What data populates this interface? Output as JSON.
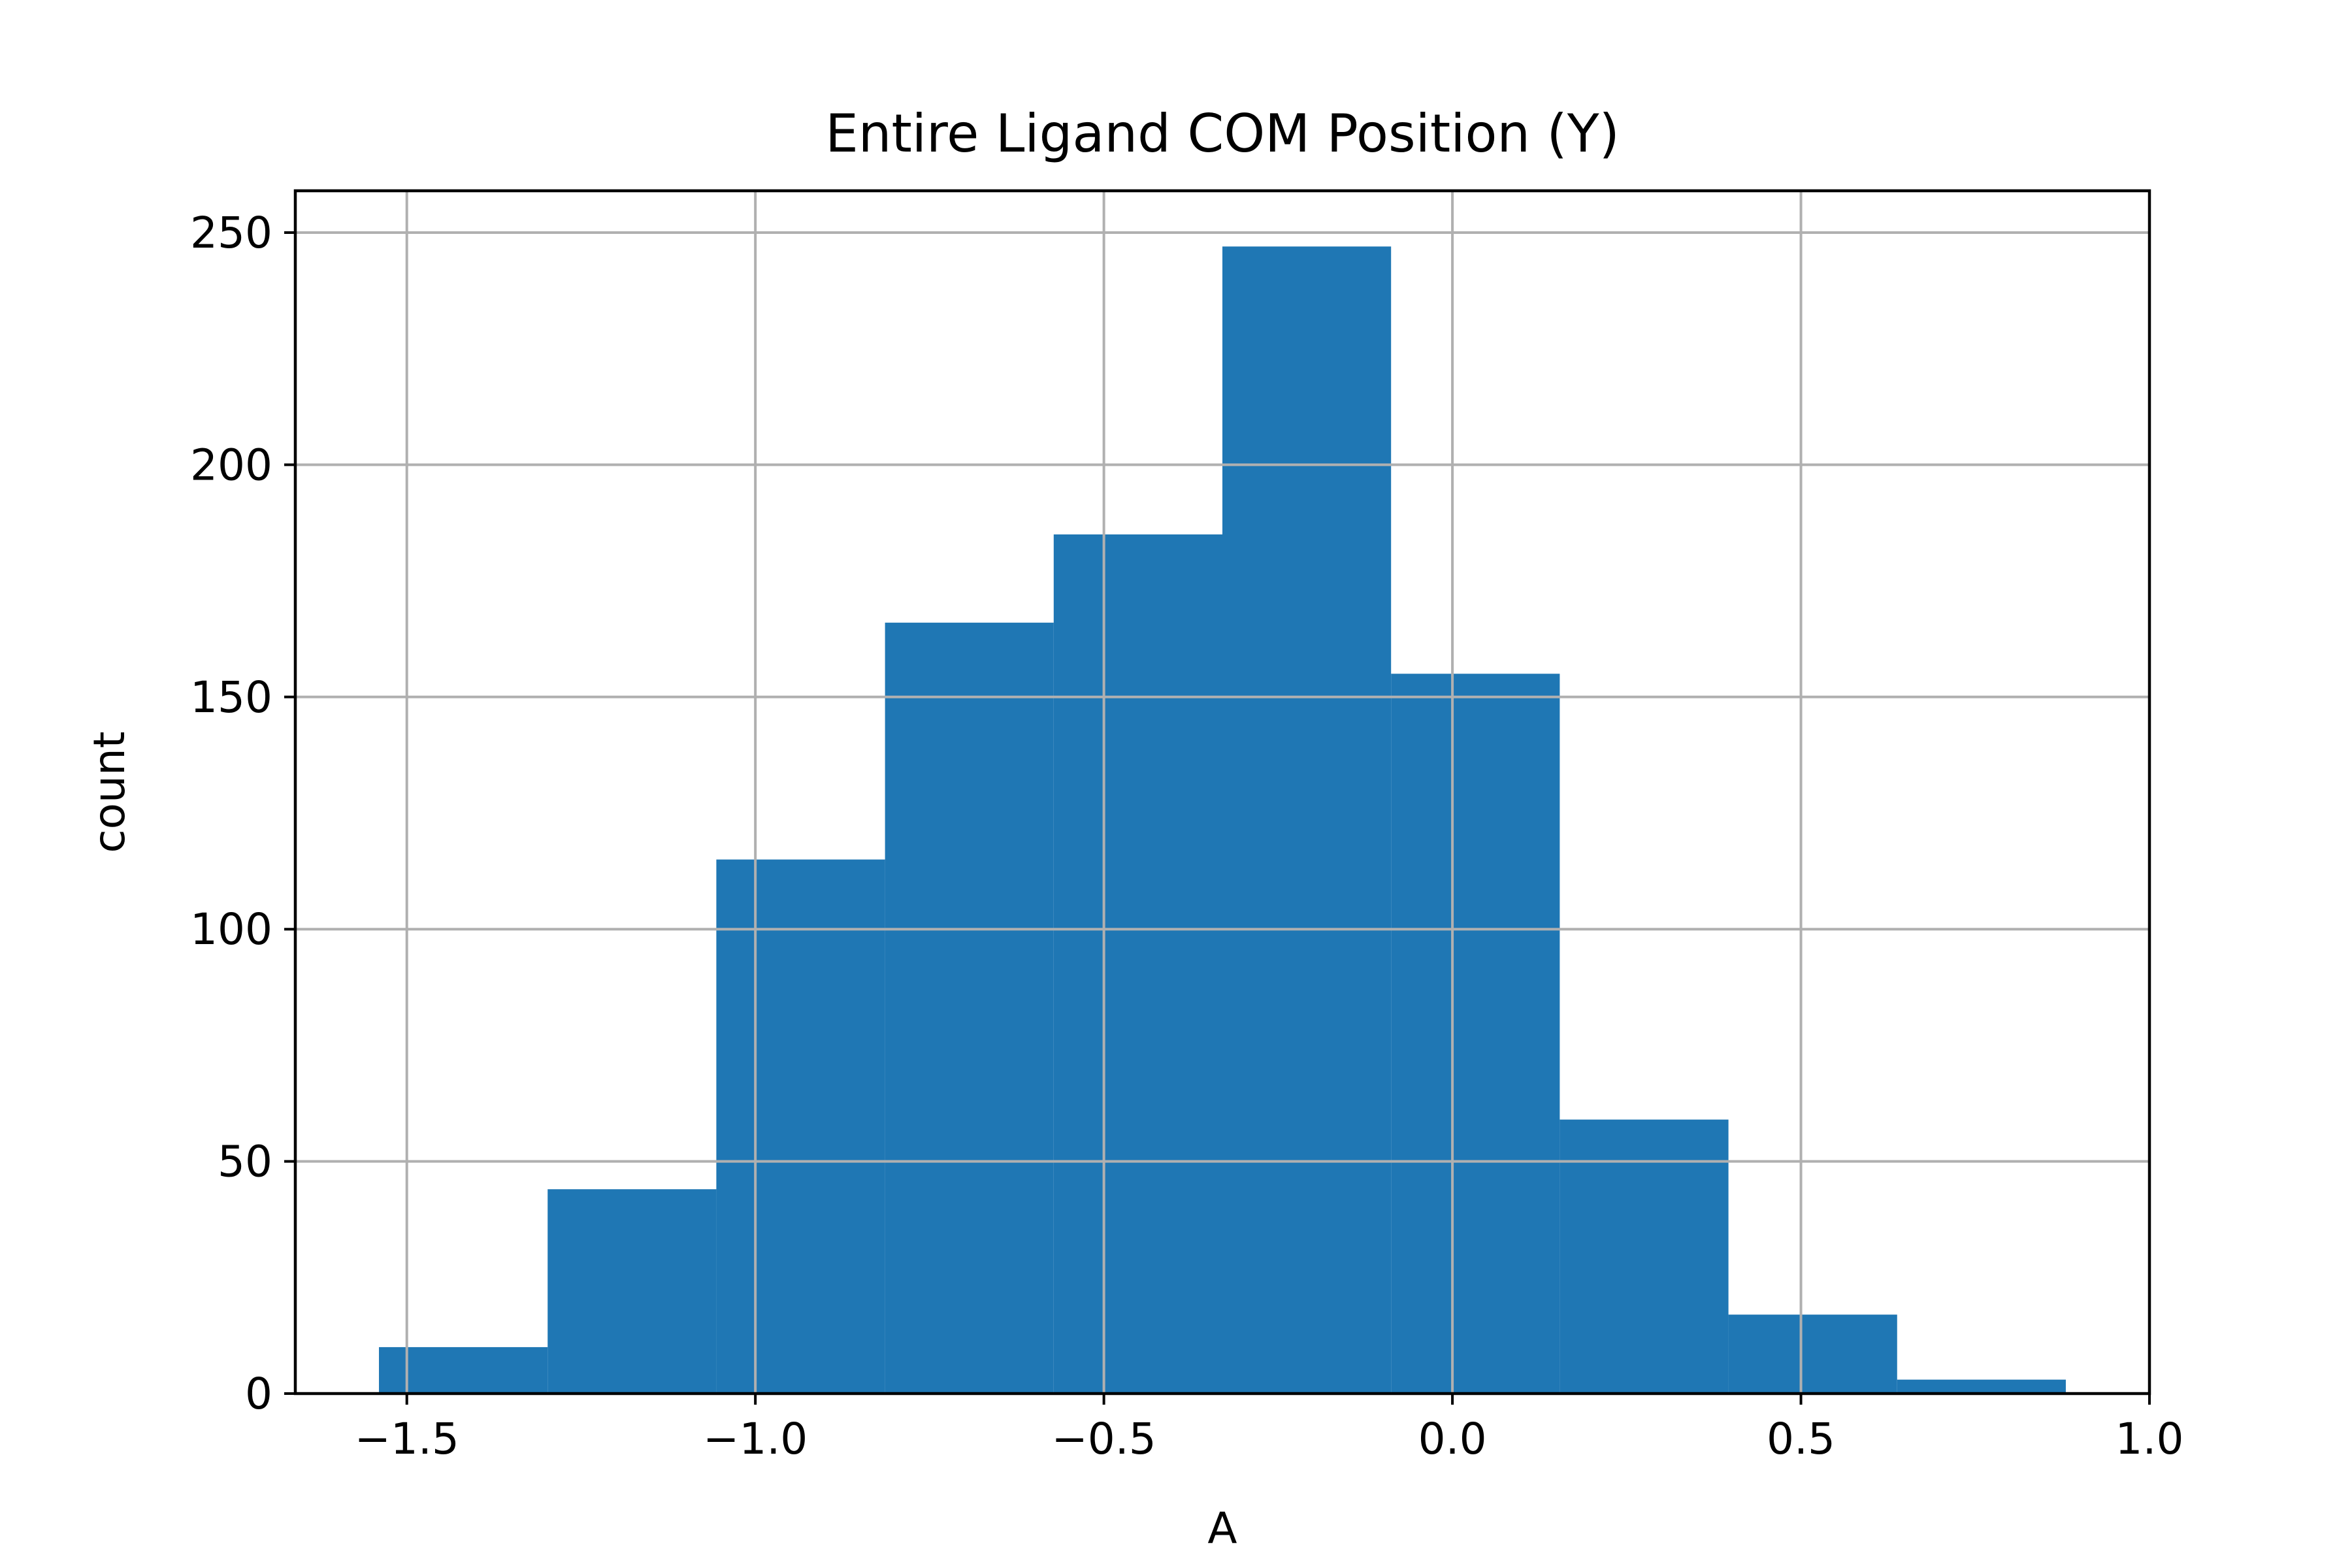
{
  "chart_data": {
    "type": "bar",
    "title": "Entire Ligand COM Position (Y)",
    "xlabel": "A",
    "ylabel": "count",
    "xlim": [
      -1.66,
      1.0
    ],
    "ylim": [
      0,
      259
    ],
    "grid": true,
    "color": "#1f77b4",
    "bins": [
      {
        "x0": -1.54,
        "x1": -1.298,
        "count": 10
      },
      {
        "x0": -1.298,
        "x1": -1.056,
        "count": 44
      },
      {
        "x0": -1.056,
        "x1": -0.814,
        "count": 115
      },
      {
        "x0": -0.814,
        "x1": -0.572,
        "count": 166
      },
      {
        "x0": -0.572,
        "x1": -0.33,
        "count": 185
      },
      {
        "x0": -0.33,
        "x1": -0.088,
        "count": 247
      },
      {
        "x0": -0.088,
        "x1": 0.154,
        "count": 155
      },
      {
        "x0": 0.154,
        "x1": 0.396,
        "count": 59
      },
      {
        "x0": 0.396,
        "x1": 0.638,
        "count": 17
      },
      {
        "x0": 0.638,
        "x1": 0.88,
        "count": 3
      }
    ],
    "xticks": [
      {
        "value": -1.5,
        "label": "−1.5"
      },
      {
        "value": -1.0,
        "label": "−1.0"
      },
      {
        "value": -0.5,
        "label": "−0.5"
      },
      {
        "value": 0.0,
        "label": "0.0"
      },
      {
        "value": 0.5,
        "label": "0.5"
      },
      {
        "value": 1.0,
        "label": "1.0"
      }
    ],
    "yticks": [
      {
        "value": 0,
        "label": "0"
      },
      {
        "value": 50,
        "label": "50"
      },
      {
        "value": 100,
        "label": "100"
      },
      {
        "value": 150,
        "label": "150"
      },
      {
        "value": 200,
        "label": "200"
      },
      {
        "value": 250,
        "label": "250"
      }
    ]
  }
}
